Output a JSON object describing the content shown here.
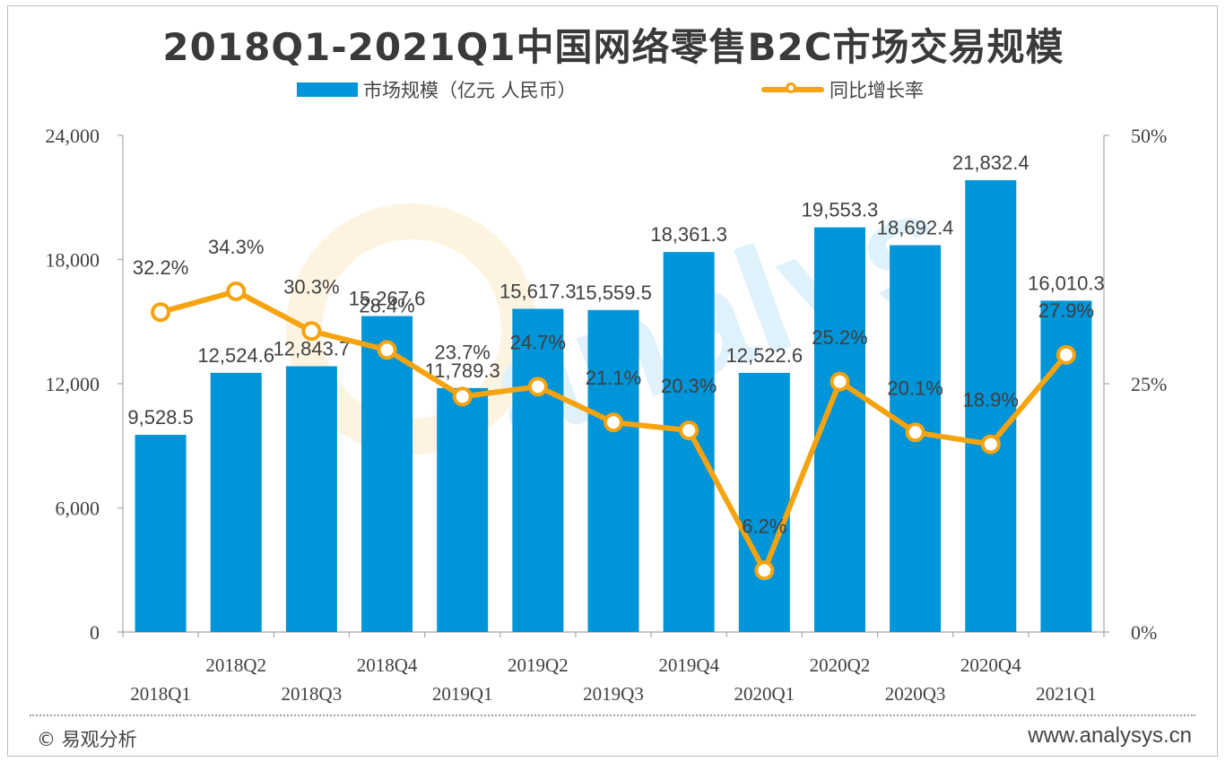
{
  "title": "2018Q1-2021Q1中国网络零售B2C市场交易规模",
  "legend": {
    "bar_label": "市场规模（亿元 人民币）",
    "line_label": "同比增长率"
  },
  "footer": {
    "copyright": "© 易观分析",
    "site": "www.analysys.cn"
  },
  "watermark": {
    "text": "analysys"
  },
  "colors": {
    "bar": "#0094d8",
    "line": "#f5a30f",
    "axis": "#a6a6a6",
    "text": "#404040"
  },
  "chart_data": {
    "type": "bar",
    "categories": [
      "2018Q1",
      "2018Q2",
      "2018Q3",
      "2018Q4",
      "2019Q1",
      "2019Q2",
      "2019Q3",
      "2019Q4",
      "2020Q1",
      "2020Q2",
      "2020Q3",
      "2020Q4",
      "2021Q1"
    ],
    "series": [
      {
        "name": "市场规模（亿元 人民币）",
        "type": "bar",
        "axis": "left",
        "values": [
          9528.5,
          12524.6,
          12843.7,
          15267.6,
          11789.3,
          15617.3,
          15559.5,
          18361.3,
          12522.6,
          19553.3,
          18692.4,
          21832.4,
          16010.3
        ],
        "labels": [
          "9,528.5",
          "12,524.6",
          "12,843.7",
          "15,267.6",
          "11,789.3",
          "15,617.3",
          "15,559.5",
          "18,361.3",
          "12,522.6",
          "19,553.3",
          "18,692.4",
          "21,832.4",
          "16,010.3"
        ]
      },
      {
        "name": "同比增长率",
        "type": "line",
        "axis": "right",
        "values": [
          32.2,
          34.3,
          30.3,
          28.4,
          23.7,
          24.7,
          21.1,
          20.3,
          6.2,
          25.2,
          20.1,
          18.9,
          27.9
        ],
        "labels": [
          "32.2%",
          "34.3%",
          "30.3%",
          "28.4%",
          "23.7%",
          "24.7%",
          "21.1%",
          "20.3%",
          "6.2%",
          "25.2%",
          "20.1%",
          "18.9%",
          "27.9%"
        ]
      }
    ],
    "y_left": {
      "ticks": [
        "0",
        "6,000",
        "12,000",
        "18,000",
        "24,000"
      ],
      "tick_values": [
        0,
        6000,
        12000,
        18000,
        24000
      ],
      "ylim": [
        0,
        24000
      ]
    },
    "y_right": {
      "ticks": [
        "0%",
        "25%",
        "50%"
      ],
      "tick_values": [
        0,
        25,
        50
      ],
      "ylim": [
        0,
        50
      ]
    },
    "grid": false,
    "legend_position": "top-center"
  }
}
